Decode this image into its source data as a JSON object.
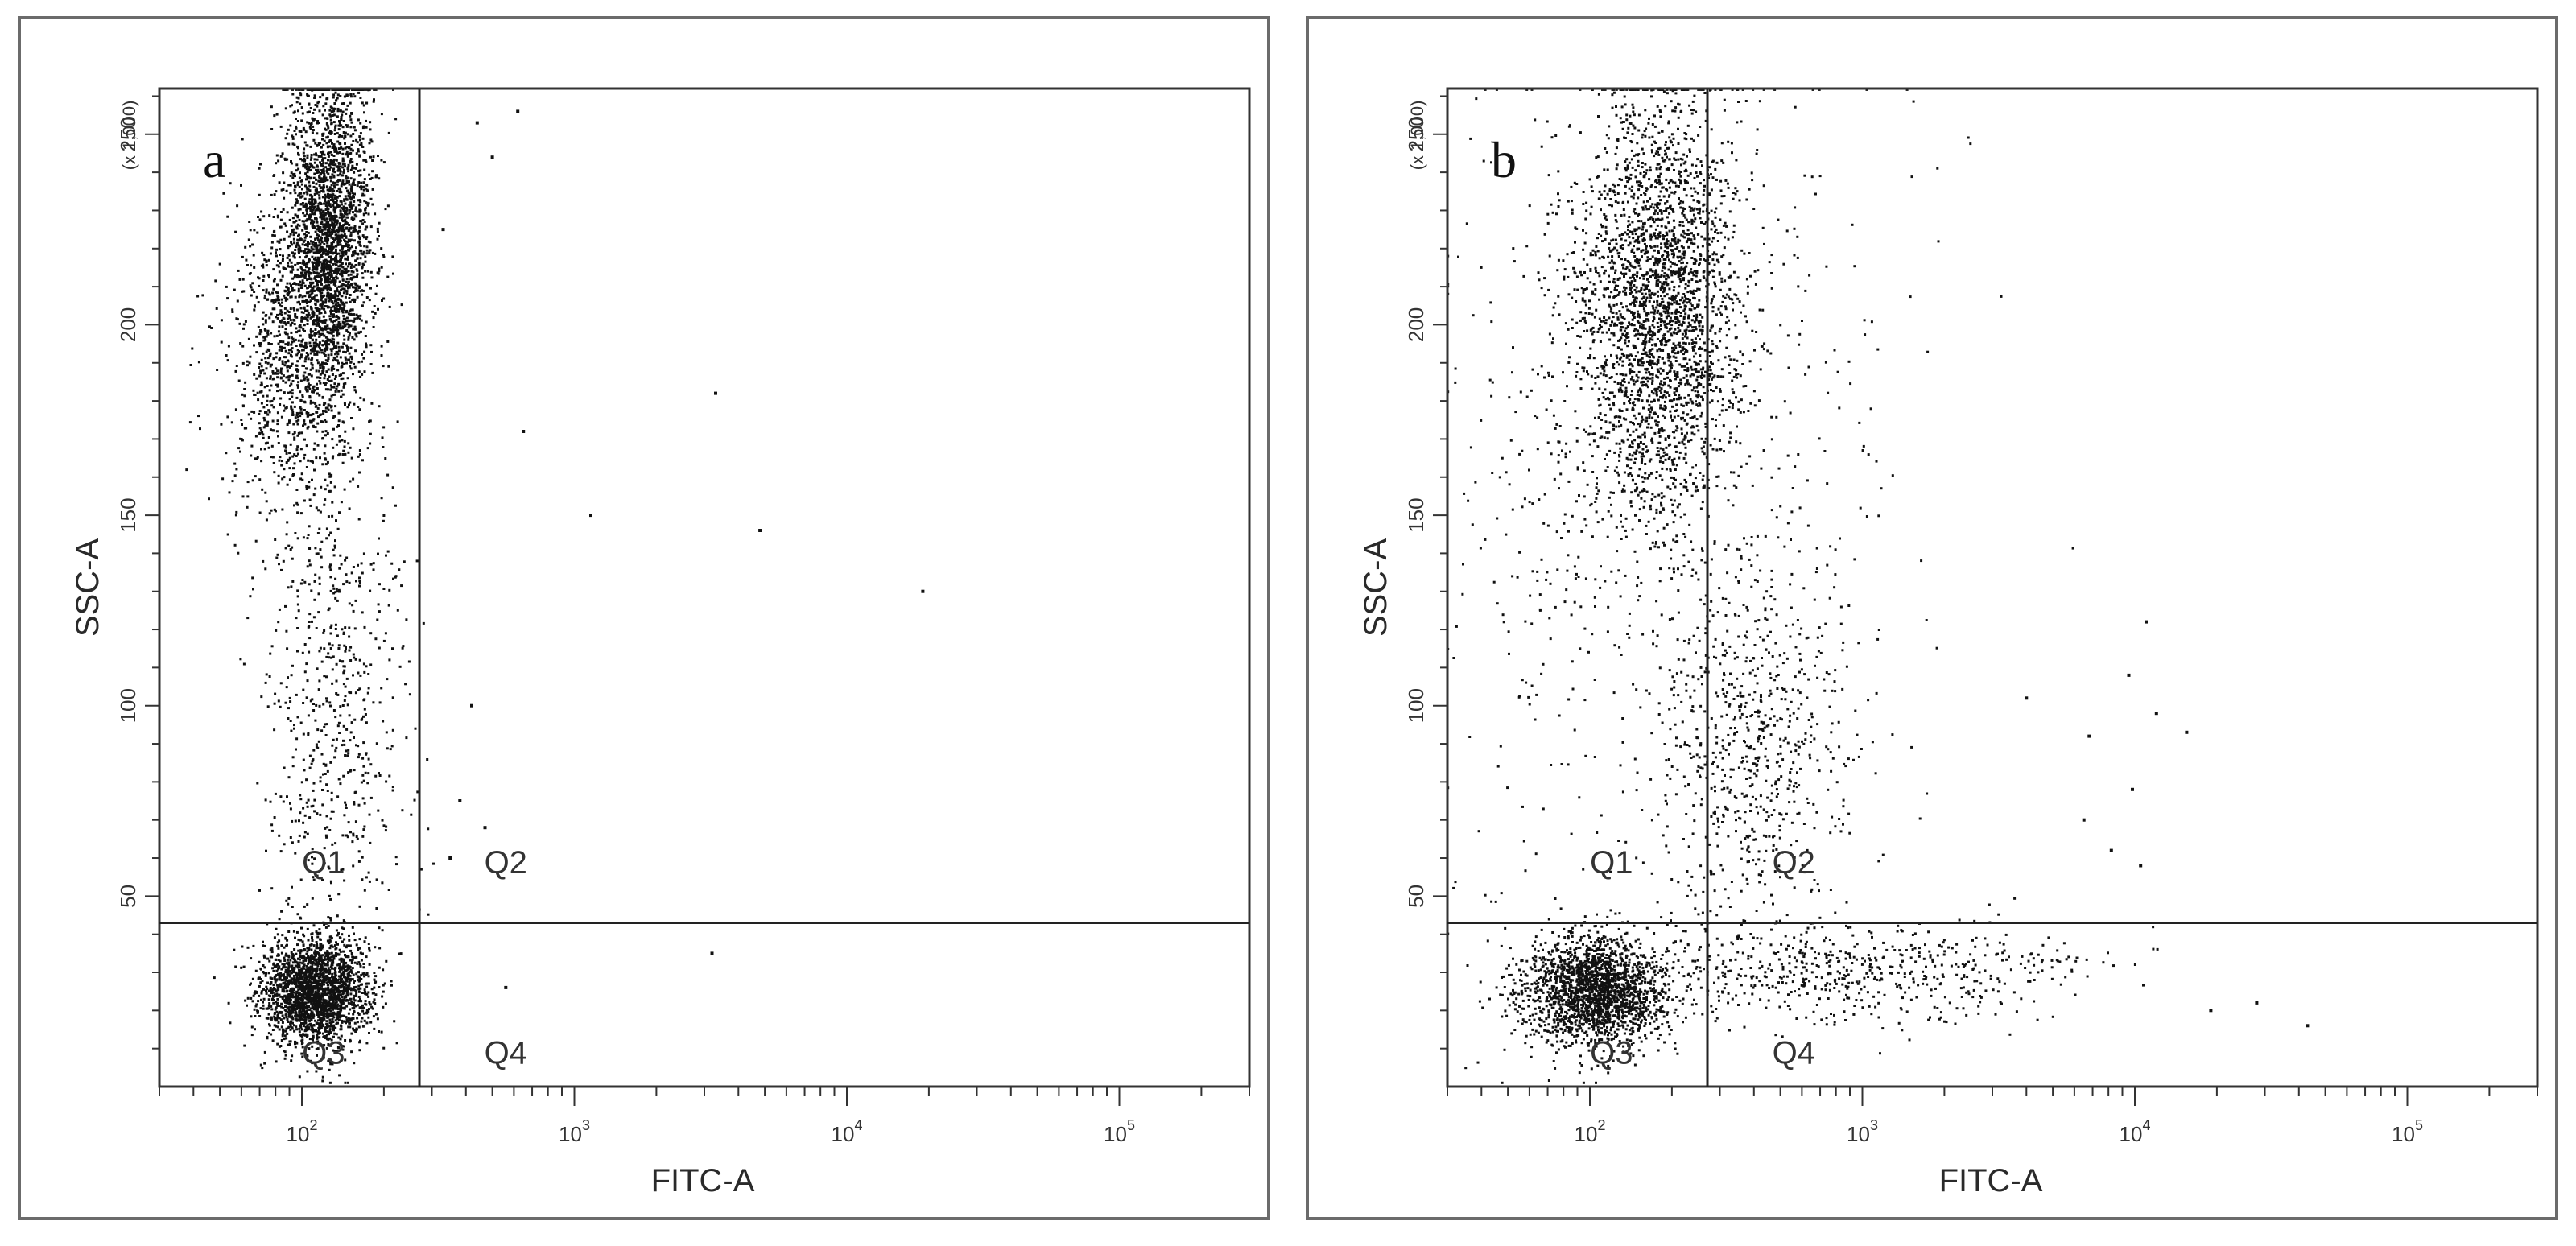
{
  "chart_data": [
    {
      "type": "scatter",
      "panel_label": "a",
      "xlabel": "FITC-A",
      "ylabel": "SSC-A",
      "y_unit_label": "(x 1,000)",
      "x_scale": "log",
      "xlim": [
        30,
        300000
      ],
      "ylim": [
        0,
        262
      ],
      "x_ticks": [
        {
          "value": 100,
          "label": "10^2"
        },
        {
          "value": 1000,
          "label": "10^3"
        },
        {
          "value": 10000,
          "label": "10^4"
        },
        {
          "value": 100000,
          "label": "10^5"
        }
      ],
      "y_ticks": [
        50,
        100,
        150,
        200,
        250
      ],
      "gate": {
        "x": 270,
        "y": 43
      },
      "quadrants": [
        "Q1",
        "Q2",
        "Q3",
        "Q4"
      ],
      "grid": false,
      "legend": "none",
      "point_color": "#111111",
      "populations": [
        {
          "name": "",
          "count": 2200,
          "x_log_center": 2.05,
          "x_log_sd": 0.1,
          "y_center": 25,
          "y_sd": 7
        },
        {
          "name": "",
          "count": 2600,
          "x_log_center": 2.1,
          "x_log_sd": 0.08,
          "y_center": 222,
          "y_sd": 22
        },
        {
          "name": "",
          "count": 900,
          "x_log_center": 1.95,
          "x_log_sd": 0.12,
          "y_center": 190,
          "y_sd": 22
        },
        {
          "name": "",
          "count": 650,
          "x_log_center": 2.12,
          "x_log_sd": 0.13,
          "y_center": 100,
          "y_sd": 35
        }
      ],
      "points": [
        {
          "x": 3200,
          "y": 35
        },
        {
          "x": 3300,
          "y": 182
        },
        {
          "x": 650,
          "y": 172
        },
        {
          "x": 1150,
          "y": 150
        },
        {
          "x": 4800,
          "y": 146
        },
        {
          "x": 19000,
          "y": 130
        },
        {
          "x": 560,
          "y": 26
        },
        {
          "x": 500,
          "y": 244
        },
        {
          "x": 620,
          "y": 256
        },
        {
          "x": 330,
          "y": 225
        },
        {
          "x": 420,
          "y": 100
        },
        {
          "x": 380,
          "y": 75
        },
        {
          "x": 470,
          "y": 68
        },
        {
          "x": 350,
          "y": 60
        },
        {
          "x": 440,
          "y": 253
        }
      ]
    },
    {
      "type": "scatter",
      "panel_label": "b",
      "xlabel": "FITC-A",
      "ylabel": "SSC-A",
      "y_unit_label": "(x 1,000)",
      "x_scale": "log",
      "xlim": [
        30,
        300000
      ],
      "ylim": [
        0,
        262
      ],
      "x_ticks": [
        {
          "value": 100,
          "label": "10^2"
        },
        {
          "value": 1000,
          "label": "10^3"
        },
        {
          "value": 10000,
          "label": "10^4"
        },
        {
          "value": 100000,
          "label": "10^5"
        }
      ],
      "y_ticks": [
        50,
        100,
        150,
        200,
        250
      ],
      "gate": {
        "x": 270,
        "y": 43
      },
      "quadrants": [
        "Q1",
        "Q2",
        "Q3",
        "Q4"
      ],
      "grid": false,
      "legend": "none",
      "point_color": "#111111",
      "populations": [
        {
          "name": "",
          "count": 2000,
          "x_log_center": 2.02,
          "x_log_sd": 0.13,
          "y_center": 25,
          "y_sd": 7
        },
        {
          "name": "",
          "count": 2600,
          "x_log_center": 2.25,
          "x_log_sd": 0.14,
          "y_center": 205,
          "y_sd": 28
        },
        {
          "name": "",
          "count": 700,
          "x_log_center": 2.6,
          "x_log_sd": 0.18,
          "y_center": 90,
          "y_sd": 25
        },
        {
          "name": "",
          "count": 650,
          "x_log_center": 2.9,
          "x_log_sd": 0.45,
          "y_center": 30,
          "y_sd": 7
        },
        {
          "name": "",
          "count": 450,
          "x_log_center": 2.4,
          "x_log_sd": 0.4,
          "y_center": 180,
          "y_sd": 45
        },
        {
          "name": "",
          "count": 250,
          "x_log_center": 1.9,
          "x_log_sd": 0.25,
          "y_center": 130,
          "y_sd": 60
        }
      ],
      "points": [
        {
          "x": 9500,
          "y": 108
        },
        {
          "x": 12000,
          "y": 98
        },
        {
          "x": 11000,
          "y": 122
        },
        {
          "x": 6800,
          "y": 92
        },
        {
          "x": 8200,
          "y": 62
        },
        {
          "x": 15500,
          "y": 93
        },
        {
          "x": 9800,
          "y": 78
        },
        {
          "x": 10500,
          "y": 58
        },
        {
          "x": 43000,
          "y": 16
        },
        {
          "x": 28000,
          "y": 22
        },
        {
          "x": 19000,
          "y": 20
        },
        {
          "x": 4000,
          "y": 102
        },
        {
          "x": 6500,
          "y": 70
        }
      ]
    }
  ]
}
